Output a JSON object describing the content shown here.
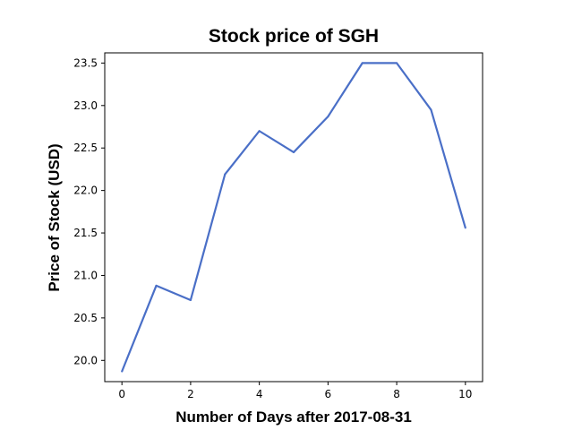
{
  "chart_data": {
    "type": "line",
    "title": "Stock price of SGH",
    "xlabel": "Number of Days after 2017-08-31",
    "ylabel": "Price of Stock (USD)",
    "x": [
      0,
      1,
      2,
      3,
      4,
      5,
      6,
      7,
      8,
      9,
      10
    ],
    "series": [
      {
        "values": [
          19.87,
          20.88,
          20.71,
          22.19,
          22.7,
          22.45,
          22.87,
          23.5,
          23.5,
          22.95,
          21.56
        ],
        "color": "#4a6fc7"
      }
    ],
    "xlim": [
      -0.5,
      10.5
    ],
    "ylim": [
      19.75,
      23.62
    ],
    "xticks": [
      0,
      2,
      4,
      6,
      8,
      10
    ],
    "yticks": [
      "20.0",
      "20.5",
      "21.0",
      "21.5",
      "22.0",
      "22.5",
      "23.0",
      "23.5"
    ],
    "grid": false,
    "legend": "none"
  }
}
